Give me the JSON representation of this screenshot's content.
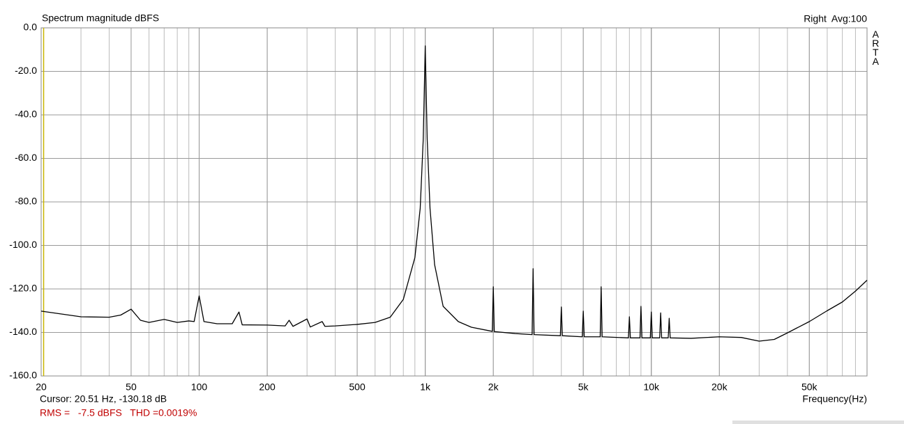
{
  "chart_data": {
    "type": "line",
    "title": "Spectrum magnitude dBFS",
    "subtitle": "Right  Avg:100",
    "brand": "ARTA",
    "x_label": "Frequency(Hz)",
    "cursor": {
      "label": "Cursor: 20.51 Hz, -130.18 dB",
      "x": 20.51
    },
    "stats": "RMS =   -7.5 dBFS   THD =0.0019%",
    "log_x": true,
    "grid": true,
    "minor_grid": true,
    "color": "#000000",
    "x": [
      20,
      30,
      40,
      45,
      50,
      55,
      60,
      70,
      80,
      90,
      95,
      100,
      105,
      120,
      140,
      150,
      155,
      200,
      240,
      250,
      260,
      300,
      310,
      350,
      360,
      400,
      500,
      600,
      700,
      800,
      900,
      950,
      980,
      1000,
      1020,
      1050,
      1100,
      1200,
      1400,
      1600,
      1980,
      2000,
      2020,
      2500,
      2970,
      3000,
      3030,
      3960,
      4000,
      4040,
      4950,
      5000,
      5050,
      5940,
      6000,
      6060,
      7920,
      8000,
      8080,
      8910,
      9000,
      9090,
      9900,
      10000,
      10100,
      10890,
      11000,
      11110,
      11880,
      12000,
      12120,
      15000,
      20000,
      25000,
      30000,
      35000,
      40000,
      50000,
      60000,
      70000,
      80000,
      90000
    ],
    "values": [
      -130.2,
      -132.8,
      -133,
      -132,
      -129.3,
      -134.4,
      -135.4,
      -134,
      -135.4,
      -134.7,
      -135,
      -123.2,
      -135,
      -136,
      -136,
      -130.6,
      -136.5,
      -136.6,
      -137,
      -134.4,
      -137.2,
      -133.8,
      -137.5,
      -135,
      -137.2,
      -137,
      -136.3,
      -135.4,
      -133,
      -124.8,
      -105.6,
      -83,
      -51,
      -8.3,
      -51,
      -83,
      -108.8,
      -128,
      -135,
      -137.6,
      -139.5,
      -119,
      -139.6,
      -140.5,
      -141,
      -110.7,
      -141,
      -141.5,
      -128.3,
      -141.5,
      -142,
      -130.2,
      -142,
      -142,
      -119,
      -142,
      -142.5,
      -132.8,
      -142.5,
      -142.5,
      -128,
      -142.5,
      -142.5,
      -130.6,
      -142.5,
      -142.5,
      -131,
      -142.5,
      -142.5,
      -133.5,
      -142.5,
      -142.7,
      -142,
      -142.3,
      -144,
      -143.2,
      -140.2,
      -135,
      -130,
      -126,
      -121,
      -116
    ],
    "xlim": [
      20,
      90000
    ],
    "ylim": [
      -160,
      0
    ],
    "xticks": [
      20,
      50,
      100,
      200,
      500,
      {
        "value": 1000,
        "label": "1k"
      },
      {
        "value": 2000,
        "label": "2k"
      },
      {
        "value": 5000,
        "label": "5k"
      },
      {
        "value": 10000,
        "label": "10k"
      },
      {
        "value": 20000,
        "label": "20k"
      },
      {
        "value": 50000,
        "label": "50k"
      }
    ],
    "yticks": [
      {
        "value": 0,
        "label": "0.0"
      },
      {
        "value": -20,
        "label": "-20.0"
      },
      {
        "value": -40,
        "label": "-40.0"
      },
      {
        "value": -60,
        "label": "-60.0"
      },
      {
        "value": -80,
        "label": "-80.0"
      },
      {
        "value": -100,
        "label": "-100.0"
      },
      {
        "value": -120,
        "label": "-120.0"
      },
      {
        "value": -140,
        "label": "-140.0"
      },
      {
        "value": -160,
        "label": "-160.0"
      }
    ]
  }
}
